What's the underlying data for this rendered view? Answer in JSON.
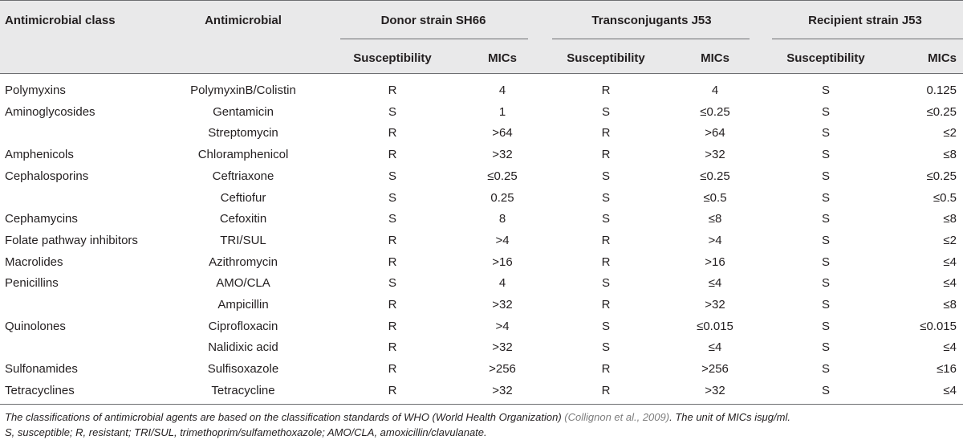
{
  "headers": {
    "col_class": "Antimicrobial class",
    "col_agent": "Antimicrobial",
    "groups": [
      "Donor strain SH66",
      "Transconjugants J53",
      "Recipient strain J53"
    ],
    "sub_susceptibility": "Susceptibility",
    "sub_mics": "MICs"
  },
  "rows": [
    {
      "cls": "Polymyxins",
      "agent": "PolymyxinB/Colistin",
      "donor_s": "R",
      "donor_m": "4",
      "trans_s": "R",
      "trans_m": "4",
      "recip_s": "S",
      "recip_m": "0.125"
    },
    {
      "cls": "Aminoglycosides",
      "agent": "Gentamicin",
      "donor_s": "S",
      "donor_m": "1",
      "trans_s": "S",
      "trans_m": "≤0.25",
      "recip_s": "S",
      "recip_m": "≤0.25"
    },
    {
      "cls": "",
      "agent": "Streptomycin",
      "donor_s": "R",
      "donor_m": ">64",
      "trans_s": "R",
      "trans_m": ">64",
      "recip_s": "S",
      "recip_m": "≤2"
    },
    {
      "cls": "Amphenicols",
      "agent": "Chloramphenicol",
      "donor_s": "R",
      "donor_m": ">32",
      "trans_s": "R",
      "trans_m": ">32",
      "recip_s": "S",
      "recip_m": "≤8"
    },
    {
      "cls": "Cephalosporins",
      "agent": "Ceftriaxone",
      "donor_s": "S",
      "donor_m": "≤0.25",
      "trans_s": "S",
      "trans_m": "≤0.25",
      "recip_s": "S",
      "recip_m": "≤0.25"
    },
    {
      "cls": "",
      "agent": "Ceftiofur",
      "donor_s": "S",
      "donor_m": "0.25",
      "trans_s": "S",
      "trans_m": "≤0.5",
      "recip_s": "S",
      "recip_m": "≤0.5"
    },
    {
      "cls": "Cephamycins",
      "agent": "Cefoxitin",
      "donor_s": "S",
      "donor_m": "8",
      "trans_s": "S",
      "trans_m": "≤8",
      "recip_s": "S",
      "recip_m": "≤8"
    },
    {
      "cls": "Folate pathway inhibitors",
      "agent": "TRI/SUL",
      "donor_s": "R",
      "donor_m": ">4",
      "trans_s": "R",
      "trans_m": ">4",
      "recip_s": "S",
      "recip_m": "≤2"
    },
    {
      "cls": "Macrolides",
      "agent": "Azithromycin",
      "donor_s": "R",
      "donor_m": ">16",
      "trans_s": "R",
      "trans_m": ">16",
      "recip_s": "S",
      "recip_m": "≤4"
    },
    {
      "cls": "Penicillins",
      "agent": "AMO/CLA",
      "donor_s": "S",
      "donor_m": "4",
      "trans_s": "S",
      "trans_m": "≤4",
      "recip_s": "S",
      "recip_m": "≤4"
    },
    {
      "cls": "",
      "agent": "Ampicillin",
      "donor_s": "R",
      "donor_m": ">32",
      "trans_s": "R",
      "trans_m": ">32",
      "recip_s": "S",
      "recip_m": "≤8"
    },
    {
      "cls": "Quinolones",
      "agent": "Ciprofloxacin",
      "donor_s": "R",
      "donor_m": ">4",
      "trans_s": "S",
      "trans_m": "≤0.015",
      "recip_s": "S",
      "recip_m": "≤0.015"
    },
    {
      "cls": "",
      "agent": "Nalidixic acid",
      "donor_s": "R",
      "donor_m": ">32",
      "trans_s": "S",
      "trans_m": "≤4",
      "recip_s": "S",
      "recip_m": "≤4"
    },
    {
      "cls": "Sulfonamides",
      "agent": "Sulfisoxazole",
      "donor_s": "R",
      "donor_m": ">256",
      "trans_s": "R",
      "trans_m": ">256",
      "recip_s": "S",
      "recip_m": "≤16"
    },
    {
      "cls": "Tetracyclines",
      "agent": "Tetracycline",
      "donor_s": "R",
      "donor_m": ">32",
      "trans_s": "R",
      "trans_m": ">32",
      "recip_s": "S",
      "recip_m": "≤4"
    }
  ],
  "footnote": {
    "line1_pre": "The classifications of antimicrobial agents are based on the classification standards of WHO (World Health Organization)",
    "line1_cite": "(Collignon et al., 2009)",
    "line1_post": ". The unit of MICs isμg/ml.",
    "line2": "S, susceptible; R, resistant; TRI/SUL, trimethoprim/sulfamethoxazole; AMO/CLA, amoxicillin/clavulanate."
  }
}
